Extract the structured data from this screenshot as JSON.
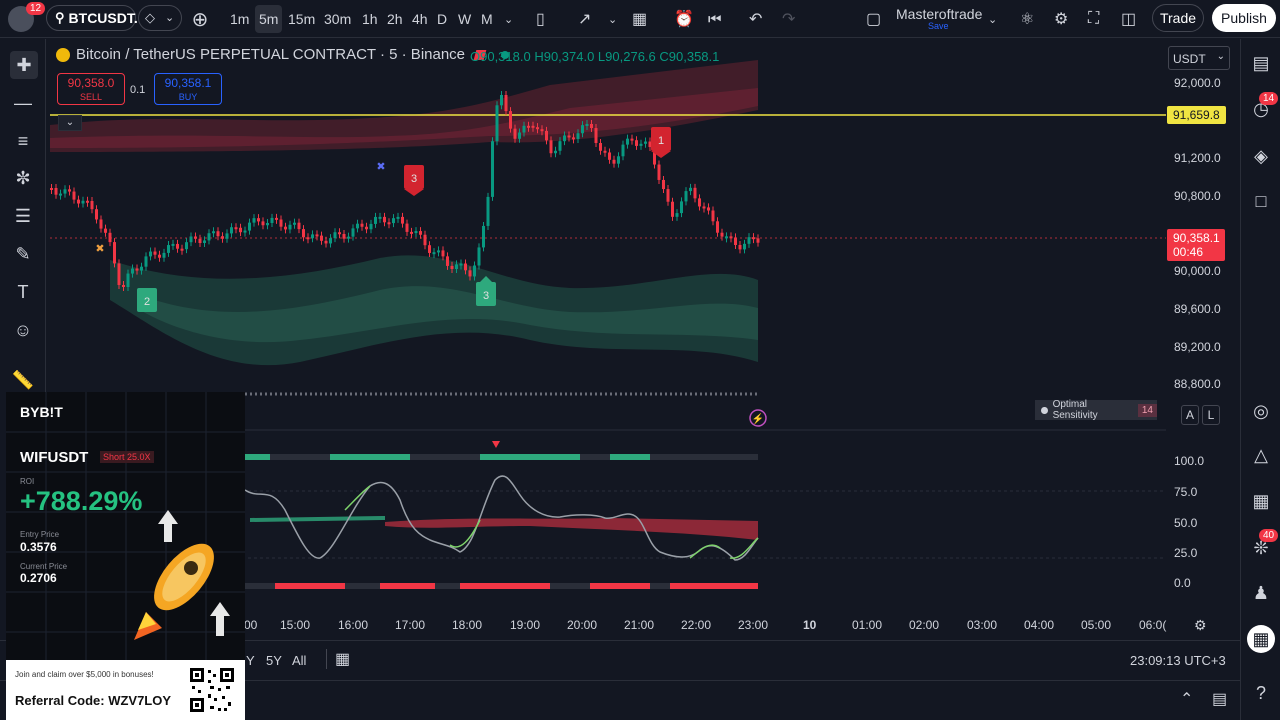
{
  "topbar": {
    "notif_count": "12",
    "symbol": "BTCUSDT.",
    "intervals": [
      "1m",
      "5m",
      "15m",
      "30m",
      "1h",
      "2h",
      "4h",
      "D",
      "W",
      "M"
    ],
    "selected_interval": "5m",
    "layout_name": "Masteroftrade",
    "layout_status": "Save",
    "trade_label": "Trade",
    "publish_label": "Publish"
  },
  "legend": {
    "title": "Bitcoin / TetherUS PERPETUAL CONTRACT · 5 · Binance",
    "ohlc": "O90,318.0 H90,374.0 L90,276.6 C90,358.1"
  },
  "order": {
    "sell_price": "90,358.0",
    "sell_label": "SELL",
    "qty": "0.1",
    "buy_price": "90,358.1",
    "buy_label": "BUY"
  },
  "price_axis": {
    "currency": "USDT",
    "ticks": [
      "92,000.0",
      "91,200.0",
      "90,800.0",
      "90,000.0",
      "89,600.0",
      "89,200.0",
      "88,800.0"
    ],
    "alert_price": "91,659.8",
    "last_price": "90,358.1",
    "countdown": "00:46"
  },
  "oscillator_axis": {
    "ticks": [
      "100.0",
      "75.0",
      "50.0",
      "25.0",
      "0.0"
    ]
  },
  "signals": {
    "buy1": "2",
    "buy2": "3",
    "sell1": "3",
    "sell2": "1"
  },
  "indicator": {
    "name": "Optimal Sensitivity",
    "value": "14"
  },
  "time_axis": {
    "ticks": [
      "00",
      "15:00",
      "16:00",
      "17:00",
      "18:00",
      "19:00",
      "20:00",
      "21:00",
      "22:00",
      "23:00",
      "10",
      "01:00",
      "02:00",
      "03:00",
      "04:00",
      "05:00",
      "06:0("
    ]
  },
  "footer": {
    "ranges": [
      "Y",
      "5Y",
      "All"
    ],
    "clock": "23:09:13 UTC+3"
  },
  "right_badges": {
    "alerts": "14",
    "notifications": "40"
  },
  "ad": {
    "brand": "BYB!T",
    "pair": "WIFUSDT",
    "side": "Short 25.0X",
    "roi_label": "ROI",
    "roi": "+788.29%",
    "entry_label": "Entry Price",
    "entry": "0.3576",
    "current_label": "Current Price",
    "current": "0.2706",
    "promo": "Join and claim over $5,000 in bonuses!",
    "referral": "Referral Code: WZV7LOY"
  },
  "colors": {
    "up": "#089981",
    "down": "#f23645",
    "alert_line": "#f0e442",
    "bg": "#131722"
  }
}
